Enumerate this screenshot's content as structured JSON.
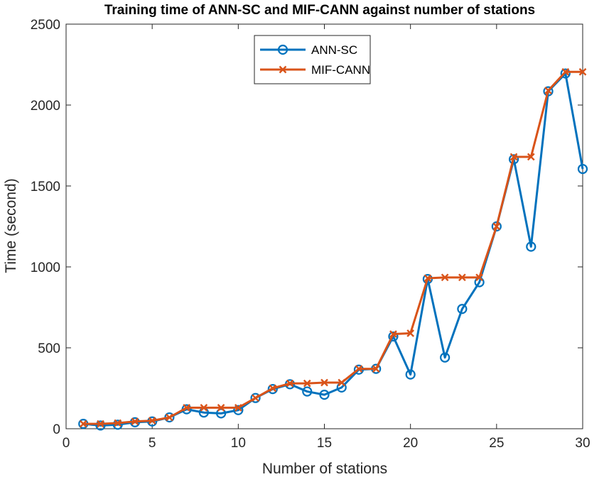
{
  "chart_data": {
    "type": "line",
    "title": "Training time of ANN-SC and MIF-CANN against number of stations",
    "xlabel": "Number of stations",
    "ylabel": "Time (second)",
    "xlim": [
      0,
      30
    ],
    "ylim": [
      0,
      2500
    ],
    "xticks": [
      0,
      5,
      10,
      15,
      20,
      25,
      30
    ],
    "yticks": [
      0,
      500,
      1000,
      1500,
      2000,
      2500
    ],
    "grid": false,
    "legend_position": "top-center",
    "x": [
      1,
      2,
      3,
      4,
      5,
      6,
      7,
      8,
      9,
      10,
      11,
      12,
      13,
      14,
      15,
      16,
      17,
      18,
      19,
      20,
      21,
      22,
      23,
      24,
      25,
      26,
      27,
      28,
      29,
      30
    ],
    "series": [
      {
        "name": "ANN-SC",
        "color": "#0072BD",
        "marker": "circle",
        "values": [
          30,
          20,
          25,
          40,
          45,
          70,
          120,
          100,
          95,
          115,
          190,
          245,
          275,
          230,
          210,
          255,
          365,
          370,
          570,
          335,
          925,
          440,
          740,
          905,
          1250,
          1665,
          1125,
          2085,
          2195,
          1605
        ]
      },
      {
        "name": "MIF-CANN",
        "color": "#D95319",
        "marker": "x",
        "values": [
          30,
          30,
          35,
          45,
          50,
          70,
          130,
          130,
          130,
          130,
          190,
          250,
          280,
          280,
          285,
          285,
          370,
          370,
          585,
          590,
          930,
          935,
          935,
          935,
          1250,
          1680,
          1680,
          2090,
          2205,
          2205
        ]
      }
    ]
  }
}
